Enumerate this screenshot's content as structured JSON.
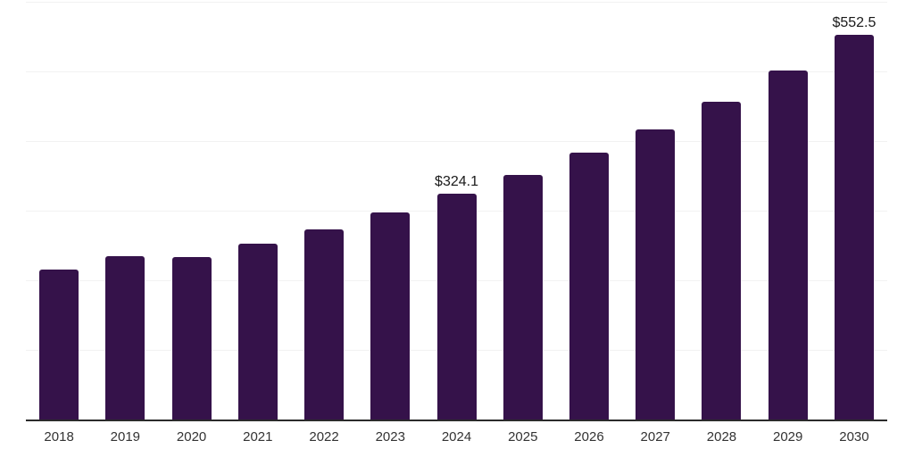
{
  "chart_data": {
    "type": "bar",
    "title": "",
    "xlabel": "",
    "ylabel": "",
    "categories": [
      "2018",
      "2019",
      "2020",
      "2021",
      "2022",
      "2023",
      "2024",
      "2025",
      "2026",
      "2027",
      "2028",
      "2029",
      "2030"
    ],
    "values": [
      215.9,
      234.3,
      233.0,
      252.7,
      273.2,
      298.0,
      324.1,
      351.8,
      383.5,
      416.9,
      456.6,
      501.5,
      552.5
    ],
    "data_labels": [
      "",
      "",
      "",
      "",
      "",
      "",
      "$324.1",
      "",
      "",
      "",
      "",
      "",
      "$552.5"
    ],
    "ylim": [
      0,
      600
    ],
    "gridline_values": [
      100,
      200,
      300,
      400,
      500,
      600
    ],
    "grid_on": true,
    "legend_position": "none",
    "colors": {
      "bar": "#35124A",
      "gridline": "#f2f2f2",
      "axis_line": "#2b2b2b",
      "value_label": "#1a1a1a",
      "tick_label": "#333333",
      "background": "#ffffff"
    }
  }
}
